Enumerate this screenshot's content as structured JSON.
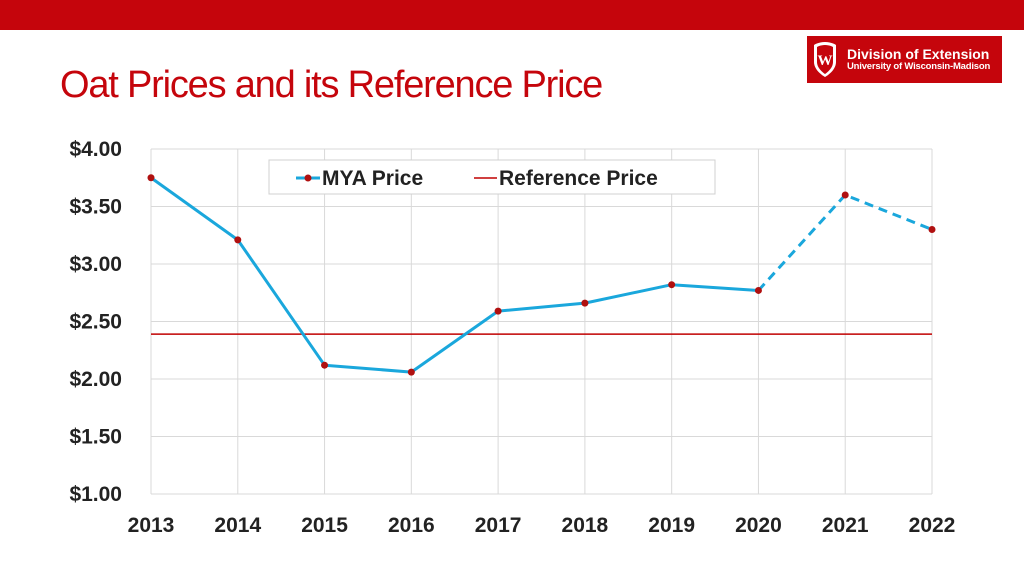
{
  "slide": {
    "title": "Oat Prices and its Reference Price"
  },
  "logo": {
    "line1": "Division of Extension",
    "line2": "University of Wisconsin-Madison",
    "crest_letter": "W"
  },
  "colors": {
    "accent": "#c5050c",
    "series_line": "#1aa7dc",
    "marker": "#b01010",
    "reference_line": "#c00000",
    "grid": "#d9d9d9"
  },
  "chart_data": {
    "type": "line",
    "x": [
      "2013",
      "2014",
      "2015",
      "2016",
      "2017",
      "2018",
      "2019",
      "2020",
      "2021",
      "2022"
    ],
    "ylim": [
      1.0,
      4.0
    ],
    "yticks": [
      "$1.00",
      "$1.50",
      "$2.00",
      "$2.50",
      "$3.00",
      "$3.50",
      "$4.00"
    ],
    "ytick_values": [
      1.0,
      1.5,
      2.0,
      2.5,
      3.0,
      3.5,
      4.0
    ],
    "grid": true,
    "legend_position": "top-center",
    "series": [
      {
        "name": "MYA Price",
        "values": [
          3.75,
          3.21,
          2.12,
          2.06,
          2.59,
          2.66,
          2.82,
          2.77,
          3.6,
          3.3
        ],
        "dashed_from_index": 7
      },
      {
        "name": "Reference Price",
        "values": [
          2.39,
          2.39,
          2.39,
          2.39,
          2.39,
          2.39,
          2.39,
          2.39,
          2.39,
          2.39
        ]
      }
    ]
  }
}
